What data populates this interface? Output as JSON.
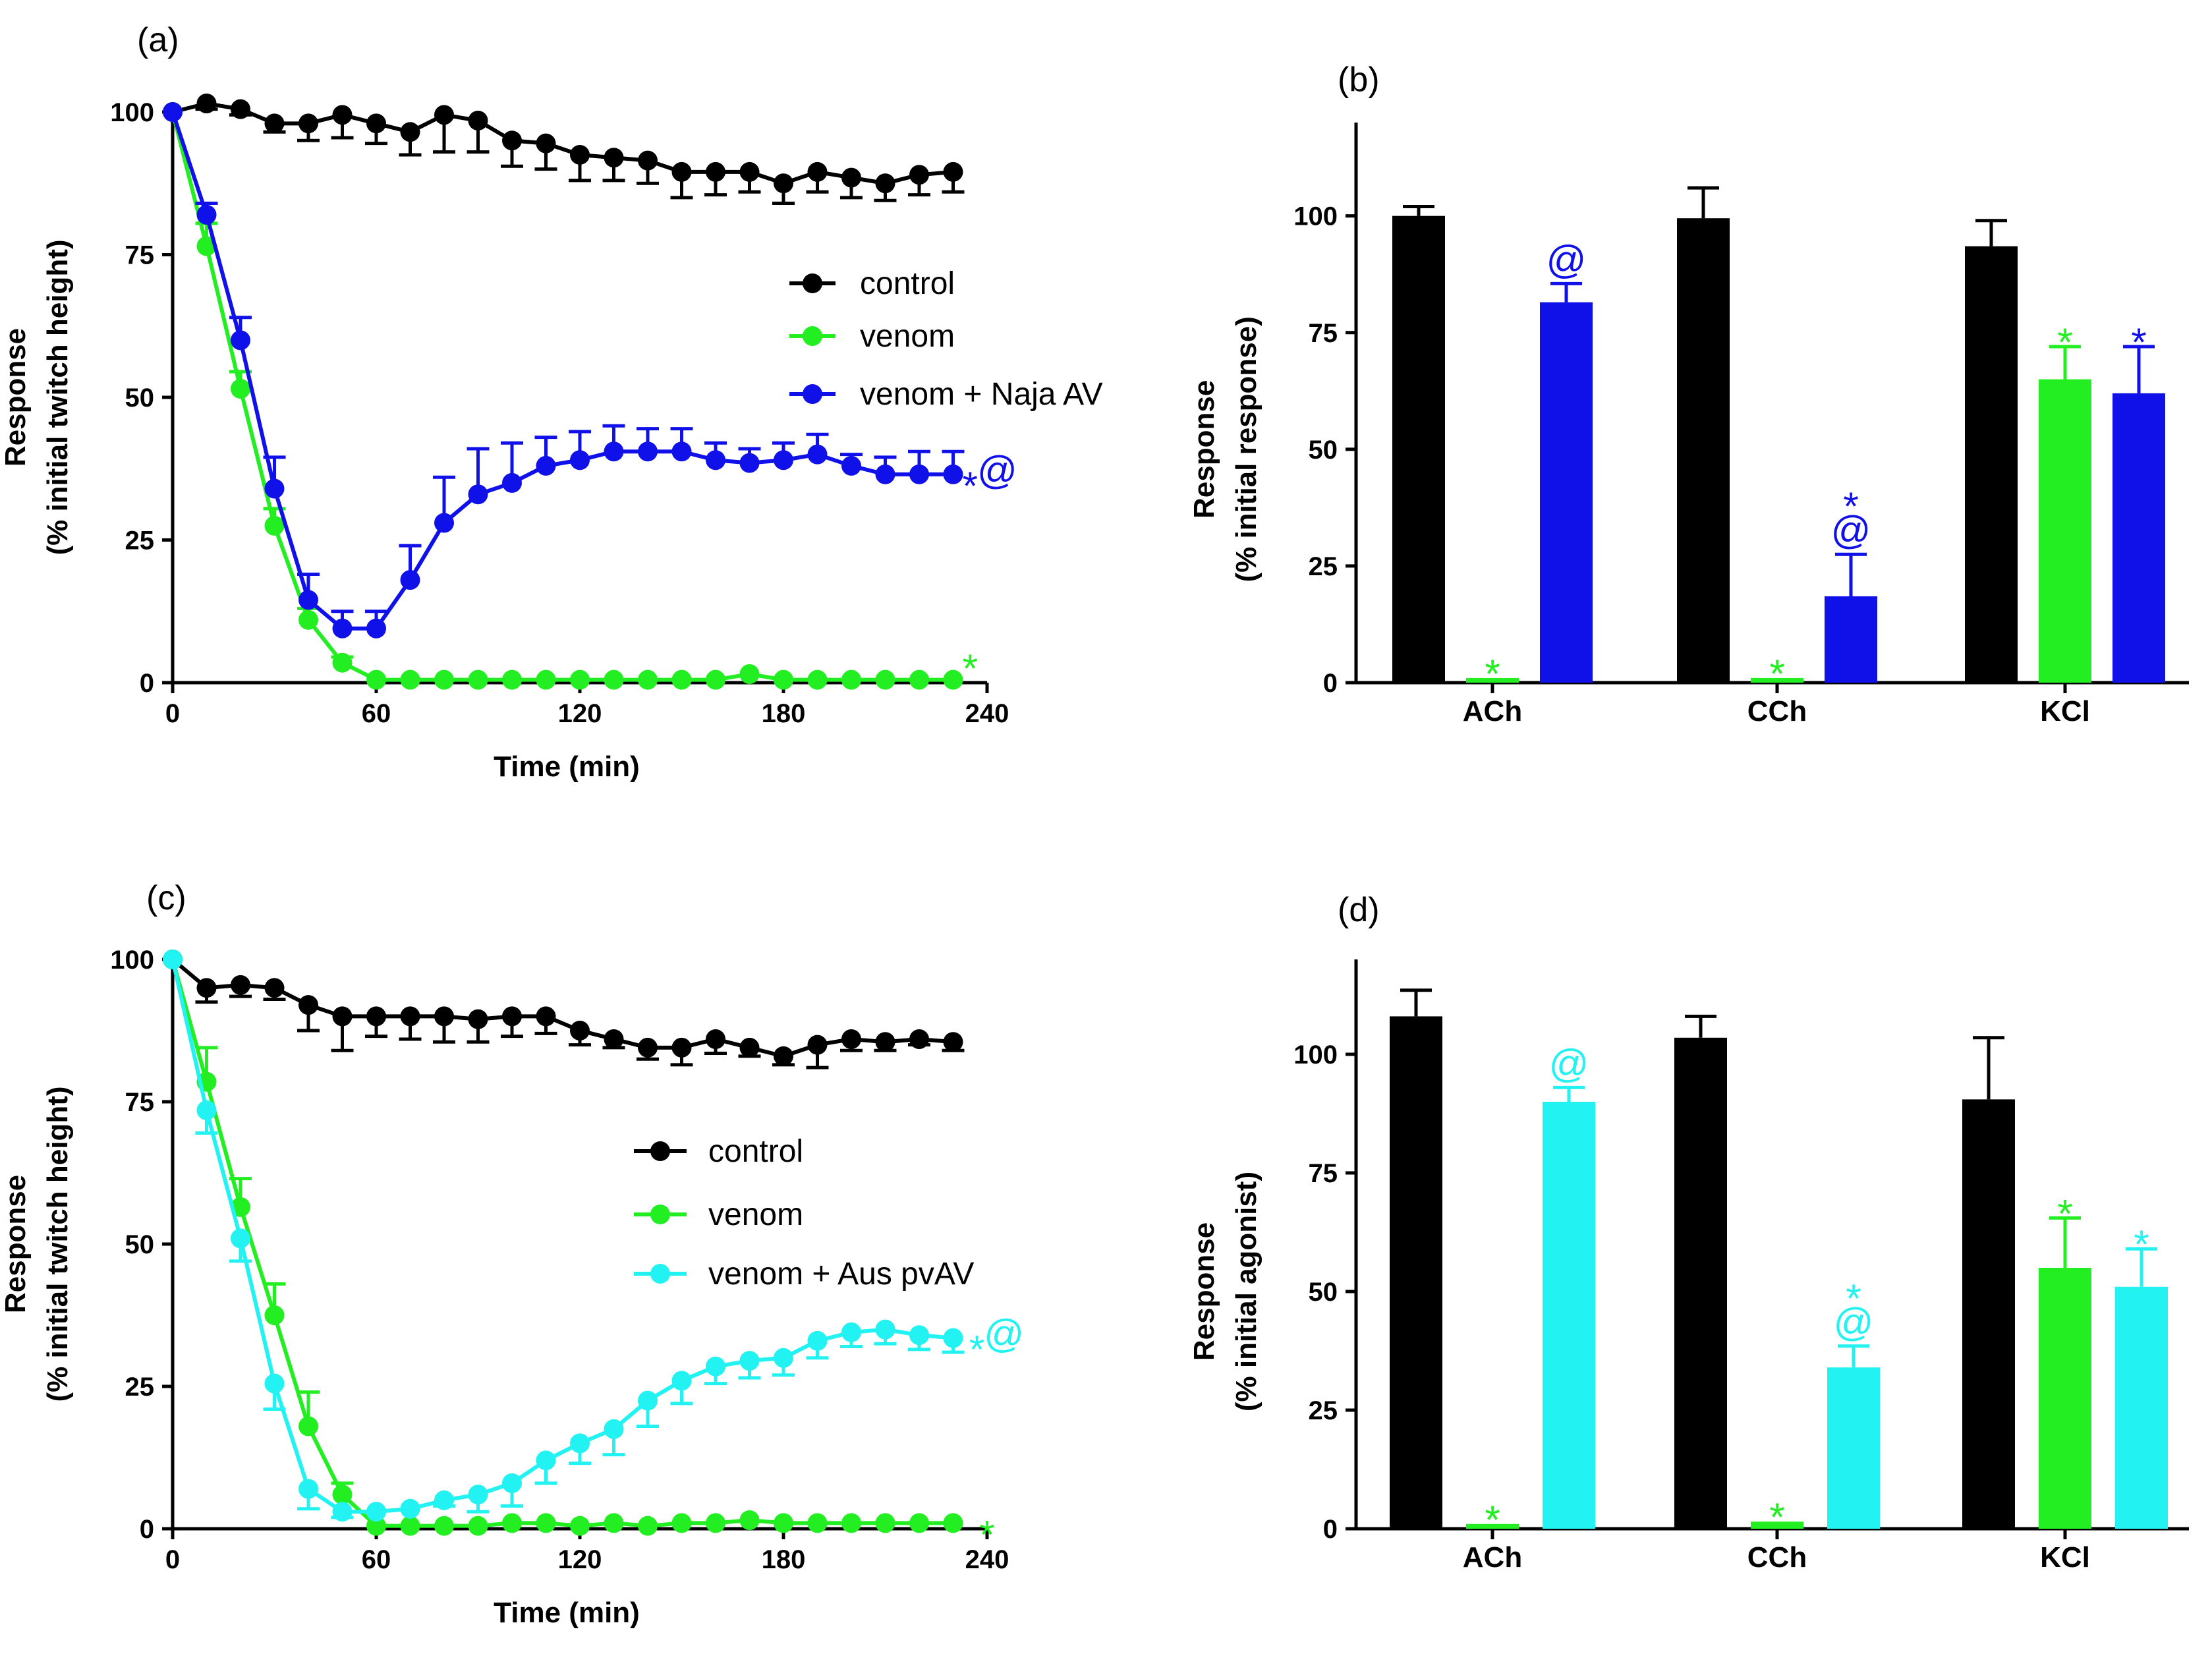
{
  "colors": {
    "control": "#000000",
    "venom": "#22EE22",
    "naja": "#1010E8",
    "aus": "#22F2F2"
  },
  "chart_data": [
    {
      "id": "a",
      "type": "line",
      "panel_label": "(a)",
      "xlabel": "Time (min)",
      "ylabel_line1": "Response",
      "ylabel_line2": "(% initial twitch height)",
      "xlim": [
        0,
        240
      ],
      "ylim": [
        0,
        100
      ],
      "xticks": [
        "0",
        "60",
        "120",
        "180",
        "240"
      ],
      "yticks": [
        "0",
        "25",
        "50",
        "75",
        "100"
      ],
      "legend_position": "center-right",
      "series": [
        {
          "name": "control",
          "color_key": "control",
          "x": [
            0,
            10,
            20,
            30,
            40,
            50,
            60,
            70,
            80,
            90,
            100,
            110,
            120,
            130,
            140,
            150,
            160,
            170,
            180,
            190,
            200,
            210,
            220,
            230
          ],
          "y": [
            100,
            101.5,
            100.5,
            98,
            98,
            99.5,
            98,
            96.5,
            99.5,
            98.5,
            95,
            94.5,
            92.5,
            92,
            91.5,
            89.5,
            89.5,
            89.5,
            87.5,
            89.5,
            88.5,
            87.5,
            89,
            89.5
          ],
          "err": [
            0,
            1,
            1,
            1.5,
            3,
            4,
            3.5,
            4,
            6.5,
            5.5,
            4.5,
            4.5,
            4.5,
            4,
            4,
            4.5,
            4,
            3.5,
            3.5,
            3.5,
            3.5,
            3,
            3.5,
            3.5
          ],
          "err_dir": "down"
        },
        {
          "name": "venom",
          "color_key": "venom",
          "x": [
            0,
            10,
            20,
            30,
            40,
            50,
            60,
            70,
            80,
            90,
            100,
            110,
            120,
            130,
            140,
            150,
            160,
            170,
            180,
            190,
            200,
            210,
            220,
            230
          ],
          "y": [
            100,
            76.5,
            51.5,
            27.5,
            11,
            3.5,
            0.5,
            0.5,
            0.5,
            0.5,
            0.5,
            0.5,
            0.5,
            0.5,
            0.5,
            0.5,
            0.5,
            1.5,
            0.5,
            0.5,
            0.5,
            0.5,
            0.5,
            0.5
          ],
          "err": [
            0,
            4,
            3,
            3,
            2,
            1,
            0,
            0,
            0,
            0,
            0,
            0,
            0,
            0,
            0,
            0,
            0,
            0,
            0,
            0,
            0,
            0,
            0,
            0
          ],
          "err_dir": "up"
        },
        {
          "name": "venom + Naja AV",
          "color_key": "naja",
          "x": [
            0,
            10,
            20,
            30,
            40,
            50,
            60,
            70,
            80,
            90,
            100,
            110,
            120,
            130,
            140,
            150,
            160,
            170,
            180,
            190,
            200,
            210,
            220,
            230
          ],
          "y": [
            100,
            82,
            60,
            34,
            14.5,
            9.5,
            9.5,
            18,
            28,
            33,
            35,
            38,
            39,
            40.5,
            40.5,
            40.5,
            39,
            38.5,
            39,
            40,
            38,
            36.5,
            36.5,
            36.5
          ],
          "err": [
            0,
            2,
            4,
            5.5,
            4.5,
            3,
            3,
            6,
            8,
            8,
            7,
            5,
            5,
            4.5,
            4,
            4,
            3,
            2.5,
            3,
            3.5,
            2,
            3,
            4,
            4
          ],
          "err_dir": "up"
        }
      ],
      "annotations": [
        {
          "text": "*",
          "color_key": "naja",
          "x": 235,
          "y": 36.5
        },
        {
          "text": "@",
          "color_key": "naja",
          "x": 243,
          "y": 36.5
        },
        {
          "text": "*",
          "color_key": "venom",
          "x": 235,
          "y": 4.5
        }
      ]
    },
    {
      "id": "b",
      "type": "bar",
      "panel_label": "(b)",
      "ylabel_line1": "Response",
      "ylabel_line2": "(% initial response)",
      "ylim": [
        0,
        120
      ],
      "yticks": [
        "0",
        "25",
        "50",
        "75",
        "100"
      ],
      "categories": [
        "ACh",
        "CCh",
        "KCl"
      ],
      "series": [
        {
          "name": "control",
          "color_key": "control",
          "values": [
            100,
            99.5,
            93.5
          ],
          "err": [
            2,
            6.5,
            5.5
          ]
        },
        {
          "name": "venom",
          "color_key": "venom",
          "values": [
            1,
            1,
            65
          ],
          "err": [
            0,
            0,
            7
          ]
        },
        {
          "name": "venom + Naja AV",
          "color_key": "naja",
          "values": [
            81.5,
            18.5,
            62
          ],
          "err": [
            4,
            9,
            10
          ]
        }
      ],
      "bar_marks": [
        {
          "category": 0,
          "series": 1,
          "marks": [
            {
              "text": "*",
              "color_key": "venom"
            }
          ]
        },
        {
          "category": 0,
          "series": 2,
          "marks": [
            {
              "text": "@",
              "color_key": "naja"
            }
          ]
        },
        {
          "category": 1,
          "series": 1,
          "marks": [
            {
              "text": "*",
              "color_key": "venom"
            }
          ]
        },
        {
          "category": 1,
          "series": 2,
          "marks": [
            {
              "text": "@",
              "color_key": "naja"
            },
            {
              "text": "*",
              "color_key": "naja"
            }
          ]
        },
        {
          "category": 2,
          "series": 1,
          "marks": [
            {
              "text": "*",
              "color_key": "venom"
            }
          ]
        },
        {
          "category": 2,
          "series": 2,
          "marks": [
            {
              "text": "*",
              "color_key": "naja"
            }
          ]
        }
      ]
    },
    {
      "id": "c",
      "type": "line",
      "panel_label": "(c)",
      "xlabel": "Time (min)",
      "ylabel_line1": "Response",
      "ylabel_line2": "(% initial twitch height)",
      "xlim": [
        0,
        240
      ],
      "ylim": [
        0,
        100
      ],
      "xticks": [
        "0",
        "60",
        "120",
        "180",
        "240"
      ],
      "yticks": [
        "0",
        "25",
        "50",
        "75",
        "100"
      ],
      "legend_position": "center",
      "series": [
        {
          "name": "control",
          "color_key": "control",
          "x": [
            0,
            10,
            20,
            30,
            40,
            50,
            60,
            70,
            80,
            90,
            100,
            110,
            120,
            130,
            140,
            150,
            160,
            170,
            180,
            190,
            200,
            210,
            220,
            230
          ],
          "y": [
            100,
            95,
            95.5,
            95,
            92,
            90,
            90,
            90,
            90,
            89.5,
            90,
            90,
            87.5,
            86,
            84.5,
            84.5,
            86,
            84.5,
            83,
            85,
            86,
            85.5,
            86,
            85.5
          ],
          "err": [
            0,
            2.5,
            2,
            2,
            4.5,
            6,
            3.5,
            4,
            4.5,
            4,
            3.5,
            3,
            2.5,
            1.5,
            2,
            3,
            2.5,
            1.5,
            1.5,
            4,
            2,
            1.5,
            1,
            1.5
          ],
          "err_dir": "down"
        },
        {
          "name": "venom",
          "color_key": "venom",
          "x": [
            0,
            10,
            20,
            30,
            40,
            50,
            60,
            70,
            80,
            90,
            100,
            110,
            120,
            130,
            140,
            150,
            160,
            170,
            180,
            190,
            200,
            210,
            220,
            230
          ],
          "y": [
            100,
            78.5,
            56.5,
            37.5,
            18,
            6,
            0.5,
            0.5,
            0.5,
            0.5,
            1,
            1,
            0.5,
            1,
            0.5,
            1,
            1,
            1.5,
            1,
            1,
            1,
            1,
            1,
            1
          ],
          "err": [
            0,
            6,
            5,
            5.5,
            6,
            2,
            0,
            0,
            0,
            0,
            0,
            0,
            0,
            0,
            0,
            0,
            0,
            0,
            0,
            0,
            0,
            0,
            0,
            0
          ],
          "err_dir": "up"
        },
        {
          "name": "venom + Aus pvAV",
          "color_key": "aus",
          "x": [
            0,
            10,
            20,
            30,
            40,
            50,
            60,
            70,
            80,
            90,
            100,
            110,
            120,
            130,
            140,
            150,
            160,
            170,
            180,
            190,
            200,
            210,
            220,
            230
          ],
          "y": [
            100,
            73.5,
            51,
            25.5,
            7,
            3,
            3,
            3.5,
            5,
            6,
            8,
            12,
            15,
            17.5,
            22.5,
            26,
            28.5,
            29.5,
            30,
            33,
            34.5,
            35,
            34,
            33.5
          ],
          "err": [
            0,
            4,
            4,
            4.5,
            3.5,
            1,
            0,
            0,
            1,
            3,
            4,
            4,
            3.5,
            4.5,
            4.5,
            4,
            3,
            3,
            3,
            3,
            2.5,
            2.5,
            2.5,
            2.5
          ],
          "err_dir": "down"
        }
      ],
      "annotations": [
        {
          "text": "*",
          "color_key": "aus",
          "x": 237,
          "y": 33.5
        },
        {
          "text": "@",
          "color_key": "aus",
          "x": 245,
          "y": 33.5
        },
        {
          "text": "*",
          "color_key": "venom",
          "x": 240,
          "y": 1
        }
      ]
    },
    {
      "id": "d",
      "type": "bar",
      "panel_label": "(d)",
      "ylabel_line1": "Response",
      "ylabel_line2": "(% initial agonist)",
      "ylim": [
        0,
        120
      ],
      "yticks": [
        "0",
        "25",
        "50",
        "75",
        "100"
      ],
      "categories": [
        "ACh",
        "CCh",
        "KCl"
      ],
      "series": [
        {
          "name": "control",
          "color_key": "control",
          "values": [
            108,
            103.5,
            90.5
          ],
          "err": [
            5.5,
            4.5,
            13
          ]
        },
        {
          "name": "venom",
          "color_key": "venom",
          "values": [
            1,
            1.5,
            55
          ],
          "err": [
            0,
            0,
            10.5
          ]
        },
        {
          "name": "venom + Aus pvAV",
          "color_key": "aus",
          "values": [
            90,
            34,
            51
          ],
          "err": [
            3,
            4.5,
            8
          ]
        }
      ],
      "bar_marks": [
        {
          "category": 0,
          "series": 1,
          "marks": [
            {
              "text": "*",
              "color_key": "venom"
            }
          ]
        },
        {
          "category": 0,
          "series": 2,
          "marks": [
            {
              "text": "@",
              "color_key": "aus"
            }
          ]
        },
        {
          "category": 1,
          "series": 1,
          "marks": [
            {
              "text": "*",
              "color_key": "venom"
            }
          ]
        },
        {
          "category": 1,
          "series": 2,
          "marks": [
            {
              "text": "@",
              "color_key": "aus"
            },
            {
              "text": "*",
              "color_key": "aus"
            }
          ]
        },
        {
          "category": 2,
          "series": 1,
          "marks": [
            {
              "text": "*",
              "color_key": "venom"
            }
          ]
        },
        {
          "category": 2,
          "series": 2,
          "marks": [
            {
              "text": "*",
              "color_key": "aus"
            }
          ]
        }
      ]
    }
  ]
}
